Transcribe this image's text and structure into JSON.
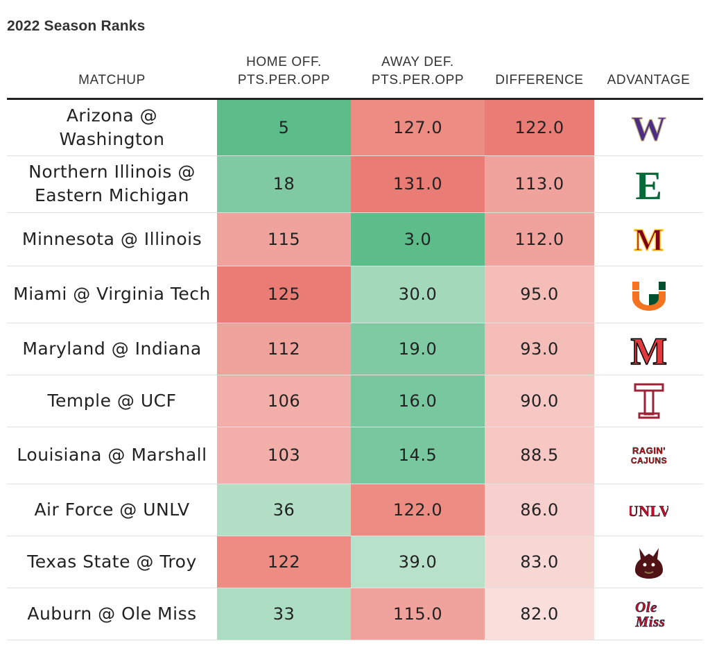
{
  "subtitle": "2022 Season Ranks",
  "columns": {
    "matchup": "MATCHUP",
    "home_off_l1": "HOME OFF.",
    "home_off_l2": "PTS.PER.OPP",
    "away_def_l1": "AWAY DEF.",
    "away_def_l2": "PTS.PER.OPP",
    "difference": "DIFFERENCE",
    "advantage": "ADVANTAGE"
  },
  "rows": [
    {
      "matchup": "Arizona @ Washington",
      "home_off": "5",
      "away_def": "127.0",
      "difference": "122.0",
      "advantage_logo": "washington-logo-icon",
      "colors": {
        "home_off": "#5dbd8a",
        "away_def": "#ec8c83",
        "difference": "#e97c75"
      }
    },
    {
      "matchup": "Northern Illinois @ Eastern Michigan",
      "home_off": "18",
      "away_def": "131.0",
      "difference": "113.0",
      "advantage_logo": "eastern-michigan-logo-icon",
      "colors": {
        "home_off": "#7fcaa3",
        "away_def": "#e97c75",
        "difference": "#f0a39c"
      }
    },
    {
      "matchup": "Minnesota @ Illinois",
      "home_off": "115",
      "away_def": "3.0",
      "difference": "112.0",
      "advantage_logo": "minnesota-logo-icon",
      "colors": {
        "home_off": "#f0a39c",
        "away_def": "#5dbd8a",
        "difference": "#f0a39c"
      }
    },
    {
      "matchup": "Miami @ Virginia Tech",
      "home_off": "125",
      "away_def": "30.0",
      "difference": "95.0",
      "advantage_logo": "miami-logo-icon",
      "colors": {
        "home_off": "#e97c75",
        "away_def": "#a4d8bb",
        "difference": "#f4bdb8"
      }
    },
    {
      "matchup": "Maryland @ Indiana",
      "home_off": "112",
      "away_def": "19.0",
      "difference": "93.0",
      "advantage_logo": "maryland-logo-icon",
      "colors": {
        "home_off": "#f0a39c",
        "away_def": "#7fcaa3",
        "difference": "#f4bdb8"
      }
    },
    {
      "matchup": "Temple @ UCF",
      "home_off": "106",
      "away_def": "16.0",
      "difference": "90.0",
      "advantage_logo": "temple-logo-icon",
      "colors": {
        "home_off": "#f2aea8",
        "away_def": "#79c79e",
        "difference": "#f6c7c3"
      }
    },
    {
      "matchup": "Louisiana @ Marshall",
      "home_off": "103",
      "away_def": "14.5",
      "difference": "88.5",
      "advantage_logo": "louisiana-logo-icon",
      "colors": {
        "home_off": "#f2aea8",
        "away_def": "#79c79e",
        "difference": "#f6c7c3"
      }
    },
    {
      "matchup": "Air Force @ UNLV",
      "home_off": "36",
      "away_def": "122.0",
      "difference": "86.0",
      "advantage_logo": "unlv-logo-icon",
      "colors": {
        "home_off": "#b2dfc6",
        "away_def": "#ec8c83",
        "difference": "#f7d0cd"
      }
    },
    {
      "matchup": "Texas State @ Troy",
      "home_off": "122",
      "away_def": "39.0",
      "difference": "83.0",
      "advantage_logo": "texas-state-logo-icon",
      "colors": {
        "home_off": "#ec8c83",
        "away_def": "#b8e1ca",
        "difference": "#f8d8d5"
      }
    },
    {
      "matchup": "Auburn @ Ole Miss",
      "home_off": "33",
      "away_def": "115.0",
      "difference": "82.0",
      "advantage_logo": "ole-miss-logo-icon",
      "colors": {
        "home_off": "#acdcc2",
        "away_def": "#f0a39c",
        "difference": "#f9dedb"
      }
    }
  ]
}
